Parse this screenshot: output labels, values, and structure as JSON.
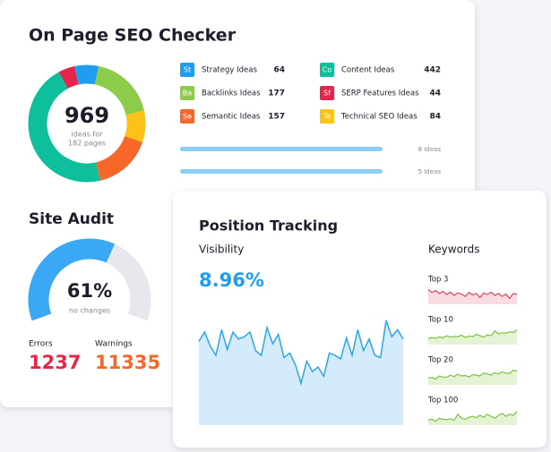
{
  "seo_checker": {
    "title": "On Page SEO Checker",
    "total": 969,
    "total_caption": [
      "ideas for",
      "182 pages"
    ],
    "ideas": [
      {
        "badge": "St",
        "label": "Strategy Ideas",
        "value": 64,
        "color": "#1e9df2"
      },
      {
        "badge": "Ba",
        "label": "Backlinks Ideas",
        "value": 177,
        "color": "#8dcc4a"
      },
      {
        "badge": "Se",
        "label": "Semantic Ideas",
        "value": 157,
        "color": "#f5682a"
      },
      {
        "badge": "Co",
        "label": "Content Ideas",
        "value": 442,
        "color": "#0dbf9a"
      },
      {
        "badge": "Sf",
        "label": "SERP Features Ideas",
        "value": 44,
        "color": "#e5264a"
      },
      {
        "badge": "Te",
        "label": "Technical SEO Ideas",
        "value": 84,
        "color": "#fbc21a"
      }
    ],
    "progress_labels": [
      "8 Ideas",
      "5 Ideas"
    ]
  },
  "site_audit": {
    "title": "Site Audit",
    "score": {
      "value": 61,
      "label": "61%"
    },
    "score_caption": "no changes",
    "errors": {
      "label": "Errors",
      "value": 1237
    },
    "warnings": {
      "label": "Warnings",
      "value": 11335
    }
  },
  "position_tracking": {
    "title": "Position Tracking",
    "visibility_label": "Visibility",
    "visibility_value": "8.96%",
    "visibility_trend": [
      72,
      80,
      68,
      60,
      82,
      65,
      80,
      74,
      76,
      80,
      64,
      60,
      84,
      70,
      78,
      58,
      62,
      52,
      36,
      55,
      46,
      50,
      42,
      62,
      60,
      57,
      75,
      60,
      82,
      64,
      74,
      60,
      58,
      90,
      76,
      82,
      74
    ],
    "keywords_label": "Keywords",
    "keywords": [
      {
        "label": "Top 3",
        "values": [
          75,
          60,
          70,
          55,
          65,
          50,
          62,
          45,
          58,
          52,
          40,
          60,
          48,
          55,
          35,
          58,
          50,
          62,
          45,
          55,
          40,
          52,
          30,
          55,
          50
        ]
      },
      {
        "label": "Top 10",
        "values": [
          30,
          35,
          32,
          40,
          35,
          45,
          38,
          42,
          40,
          48,
          36,
          44,
          40,
          52,
          45,
          38,
          50,
          45,
          70,
          55,
          60,
          58,
          65,
          62,
          75
        ]
      },
      {
        "label": "Top 20",
        "values": [
          35,
          38,
          30,
          45,
          40,
          38,
          50,
          42,
          55,
          45,
          48,
          40,
          52,
          50,
          45,
          60,
          55,
          50,
          62,
          55,
          65,
          60,
          58,
          75,
          70
        ]
      },
      {
        "label": "Top 100",
        "values": [
          25,
          30,
          20,
          35,
          30,
          28,
          32,
          25,
          55,
          35,
          30,
          40,
          45,
          38,
          50,
          40,
          55,
          45,
          35,
          50,
          60,
          45,
          55,
          50,
          70
        ]
      }
    ]
  }
}
